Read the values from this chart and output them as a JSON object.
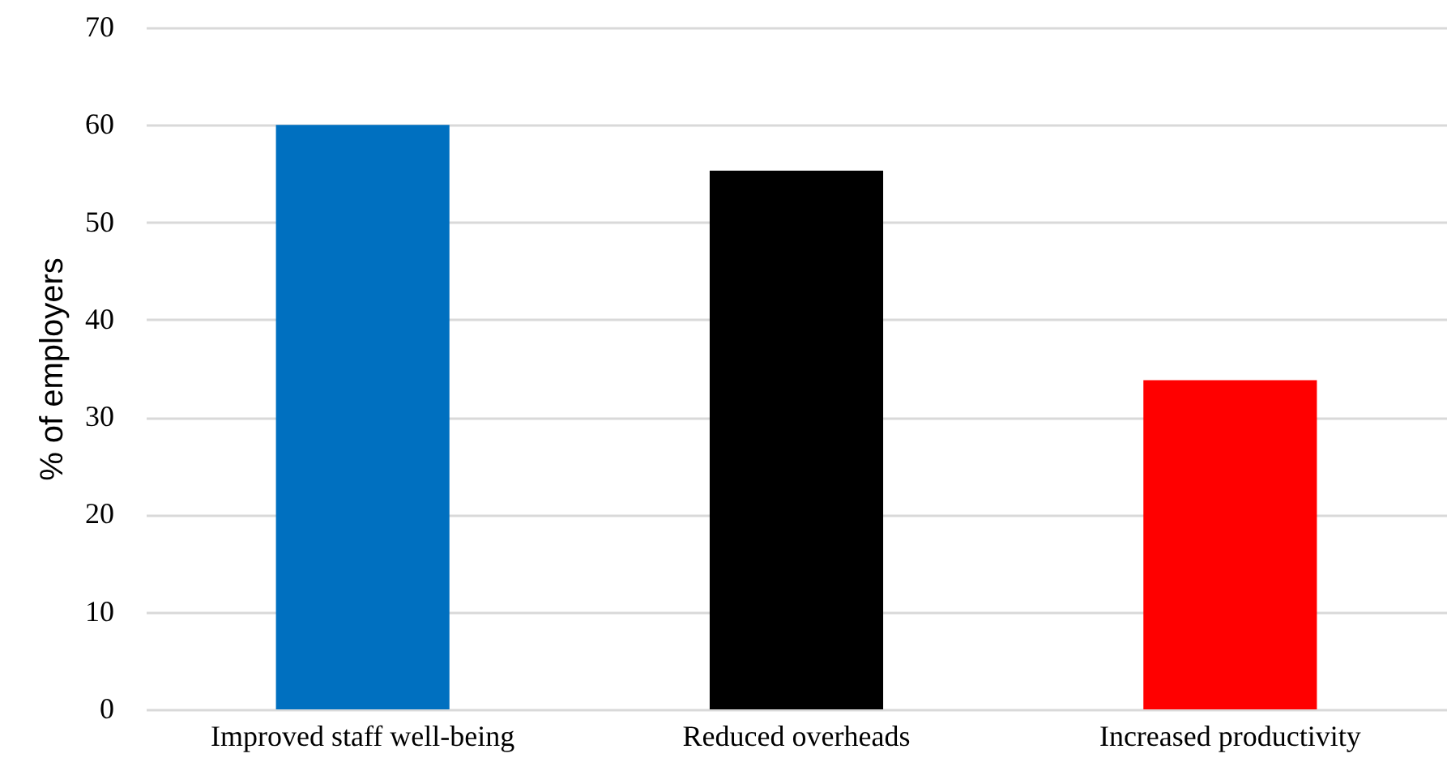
{
  "chart_data": {
    "type": "bar",
    "ylabel": "% of employers",
    "categories": [
      "Improved staff well-being",
      "Reduced overheads",
      "Increased productivity"
    ],
    "values": [
      60,
      55.3,
      33.8
    ],
    "colors": [
      "#0070c0",
      "#000000",
      "#ff0000"
    ],
    "ylim": [
      0,
      70
    ],
    "yticks": [
      0,
      10,
      20,
      30,
      40,
      50,
      60,
      70
    ],
    "grid": "y"
  }
}
